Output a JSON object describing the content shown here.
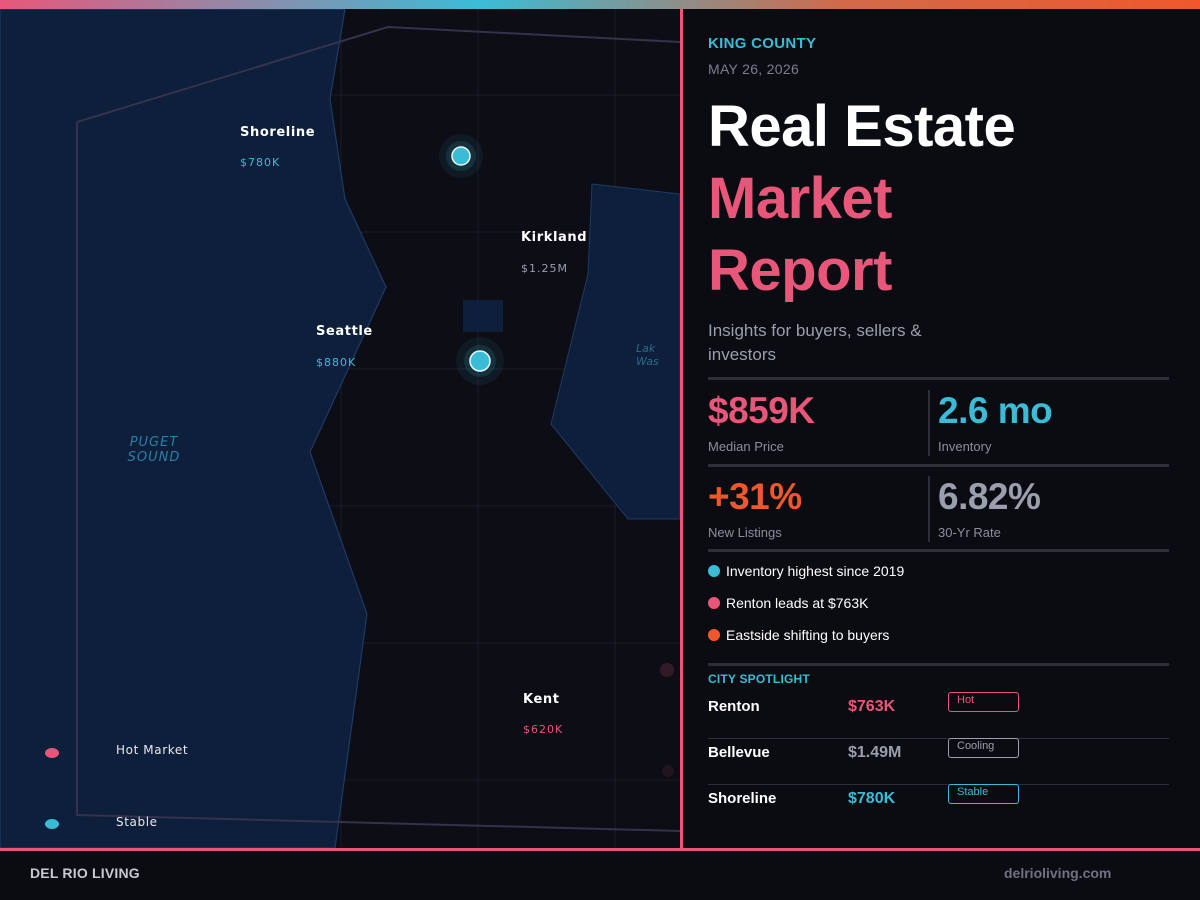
{
  "colors": {
    "accent_pink": "#e8577a",
    "accent_teal": "#3bbcd6",
    "accent_orange": "#f0582c",
    "grey": "#9a9fae",
    "background": "#0b0c12",
    "water": "#0d1f3a"
  },
  "map": {
    "cities": [
      {
        "name": "Shoreline",
        "price": "$780K"
      },
      {
        "name": "Kirkland",
        "price": "$1.25M"
      },
      {
        "name": "Seattle",
        "price": "$880K"
      },
      {
        "name": "Kent",
        "price": "$620K"
      }
    ],
    "water_label": "PUGET\nSOUND",
    "lake_label": "Lak\nWas",
    "legend": [
      {
        "label": "Hot Market",
        "color": "#e8577a"
      },
      {
        "label": "Stable",
        "color": "#3bbcd6"
      }
    ]
  },
  "header": {
    "county": "KING COUNTY",
    "date": "MAY 26, 2026"
  },
  "title": {
    "line1": "Real Estate",
    "line2": "Market",
    "line3": "Report"
  },
  "subtitle": "Insights for buyers, sellers & investors",
  "stats": [
    {
      "value": "$859K",
      "label": "Median Price",
      "color": "#e8577a"
    },
    {
      "value": "2.6 mo",
      "label": "Inventory",
      "color": "#3bbcd6"
    },
    {
      "value": "+31%",
      "label": "New Listings",
      "color": "#f0582c"
    },
    {
      "value": "6.82%",
      "label": "30-Yr Rate",
      "color": "#9a9fae"
    }
  ],
  "insights": [
    {
      "text": "Inventory highest since 2019",
      "color": "#3bbcd6"
    },
    {
      "text": "Renton leads at $763K",
      "color": "#e8577a"
    },
    {
      "text": "Eastside shifting to buyers",
      "color": "#f0582c"
    }
  ],
  "spotlight": {
    "title": "CITY SPOTLIGHT",
    "rows": [
      {
        "city": "Renton",
        "price": "$763K",
        "badge": "Hot",
        "color": "#e8577a"
      },
      {
        "city": "Bellevue",
        "price": "$1.49M",
        "badge": "Cooling",
        "color": "#9a9fae"
      },
      {
        "city": "Shoreline",
        "price": "$780K",
        "badge": "Stable",
        "color": "#3bbcd6"
      }
    ]
  },
  "footer": {
    "brand": "DEL RIO LIVING",
    "website": "delrioliving.com"
  }
}
